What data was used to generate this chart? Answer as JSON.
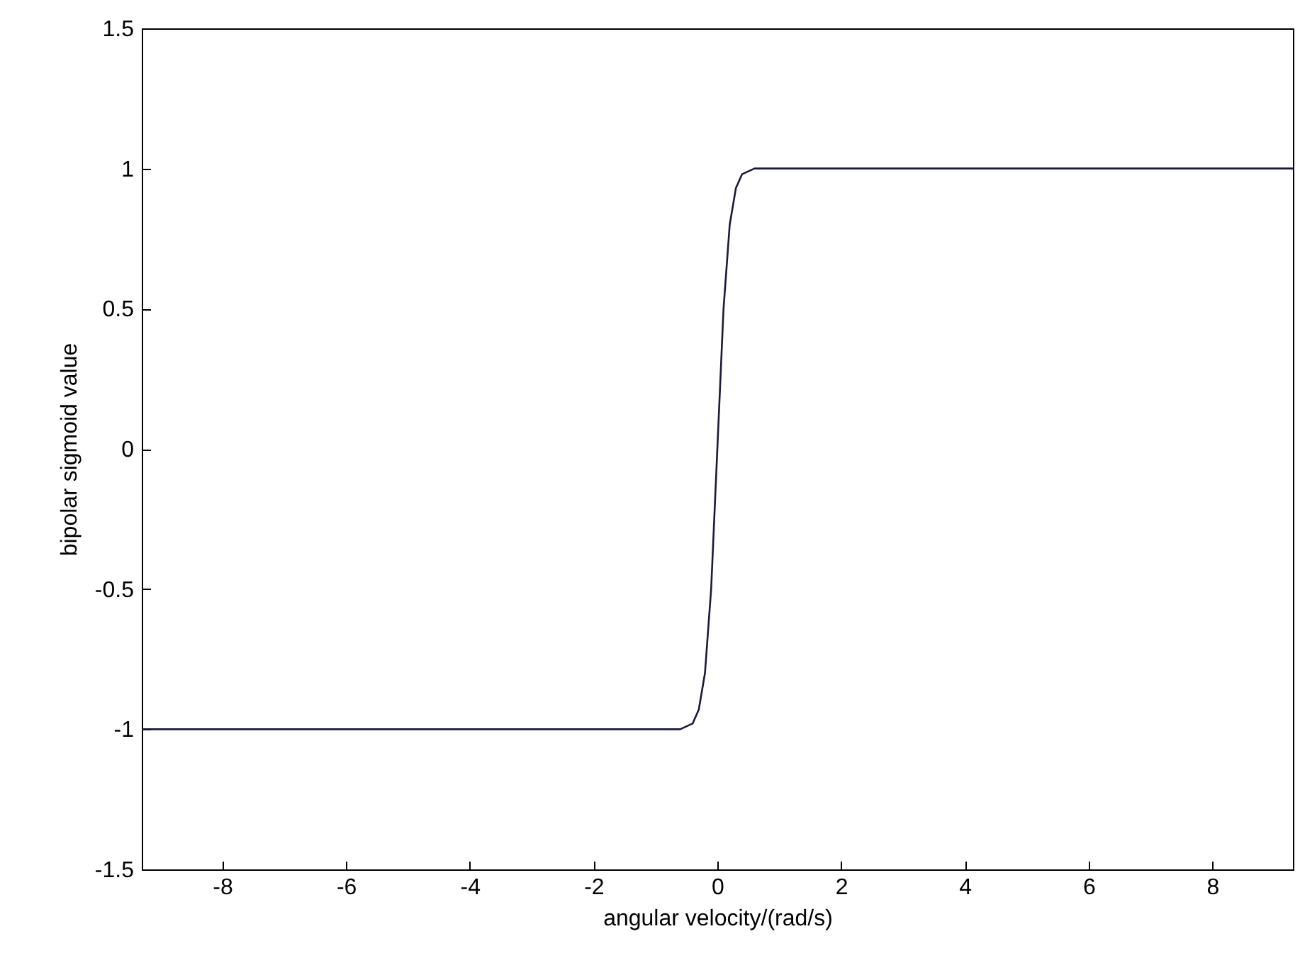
{
  "chart_data": {
    "type": "line",
    "xlabel": "angular velocity/(rad/s)",
    "ylabel": "bipolar sigmoid value",
    "x": [
      -9.3,
      -0.8,
      -0.6,
      -0.4,
      -0.3,
      -0.2,
      -0.1,
      0,
      0.1,
      0.2,
      0.3,
      0.4,
      0.6,
      0.8,
      9.3
    ],
    "series": [
      {
        "color": "#1a1a3a",
        "values": [
          -1,
          -1,
          -1,
          -0.98,
          -0.93,
          -0.8,
          -0.5,
          0,
          0.5,
          0.8,
          0.93,
          0.98,
          1,
          1,
          1
        ]
      }
    ],
    "xlim": [
      -9.3,
      9.3
    ],
    "ylim": [
      -1.5,
      1.5
    ],
    "xticks": [
      -8,
      -6,
      -4,
      -2,
      0,
      2,
      4,
      6,
      8
    ],
    "yticks": [
      -1.5,
      -1,
      -0.5,
      0,
      0.5,
      1,
      1.5
    ],
    "grid": false,
    "marker": "none",
    "line_style": "solid"
  }
}
